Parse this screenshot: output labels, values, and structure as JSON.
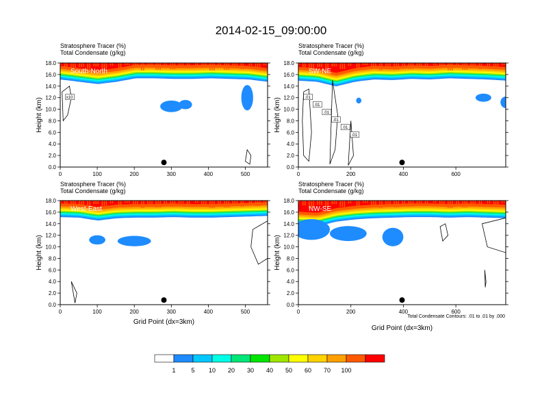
{
  "title": "2014-02-15_09:00:00",
  "colorbar": {
    "colors": [
      "#ffffff",
      "#1e8cff",
      "#00c8ff",
      "#00ffe6",
      "#00e678",
      "#00e600",
      "#a0e600",
      "#ffff00",
      "#ffd200",
      "#ffa000",
      "#ff5a00",
      "#ff0000"
    ],
    "labels": [
      "1",
      "5",
      "10",
      "20",
      "30",
      "40",
      "50",
      "60",
      "70",
      "100"
    ]
  },
  "footnote": "Total Condensate Contours: .01 to .01 by .000",
  "chart_data": [
    {
      "type": "heatmap",
      "panel": "top-left",
      "label": "South-North",
      "header": [
        "Stratosphere Tracer   (%)",
        "Total Condensate   (g/kg)"
      ],
      "ylabel": "Height (km)",
      "xlabel": "",
      "xlim": [
        0,
        560
      ],
      "ylim": [
        0,
        18
      ],
      "xticks": [
        "0",
        "100",
        "200",
        "300",
        "400",
        "500"
      ],
      "xtick_values": [
        0,
        100,
        200,
        300,
        400,
        500
      ],
      "yticks": [
        "0.0",
        "2.0",
        "4.0",
        "6.0",
        "8.0",
        "10.0",
        "12.0",
        "14.0",
        "16.0",
        "18.0"
      ],
      "marker": {
        "x": 280,
        "y": 0.8
      },
      "tracer_base_km": [
        15.4,
        15.0,
        14.6,
        15.0,
        15.6,
        15.6,
        15.5,
        15.5,
        15.6,
        15.5,
        15.4,
        15.0
      ],
      "contour_labels": [
        "x10"
      ]
    },
    {
      "type": "heatmap",
      "panel": "top-right",
      "label": "SW-NE",
      "header": [
        "Stratosphere Tracer   (%)",
        "Total Condensate   (g/kg)"
      ],
      "ylabel": "Height (km)",
      "xlabel": "",
      "xlim": [
        0,
        790
      ],
      "ylim": [
        0,
        18
      ],
      "xticks": [
        "0",
        "200",
        "400",
        "600"
      ],
      "xtick_values": [
        0,
        200,
        400,
        600
      ],
      "yticks": [
        "0.0",
        "2.0",
        "4.0",
        "6.0",
        "8.0",
        "10.0",
        "12.0",
        "14.0",
        "16.0",
        "18.0"
      ],
      "marker": {
        "x": 395,
        "y": 0.8
      },
      "tracer_base_km": [
        15.2,
        15.0,
        14.2,
        15.0,
        15.4,
        15.3,
        15.5,
        15.4,
        15.6,
        15.5,
        15.4,
        15.2
      ],
      "contour_labels": [
        ".01",
        ".01",
        ".01",
        ".01",
        ".01",
        ".01"
      ]
    },
    {
      "type": "heatmap",
      "panel": "bottom-left",
      "label": "West-East",
      "header": [
        "Stratosphere Tracer   (%)",
        "Total Condensate   (g/kg)"
      ],
      "ylabel": "Height (km)",
      "xlabel": "Grid Point (dx=3km)",
      "xlim": [
        0,
        560
      ],
      "ylim": [
        0,
        18
      ],
      "xticks": [
        "0",
        "100",
        "200",
        "300",
        "400",
        "500"
      ],
      "xtick_values": [
        0,
        100,
        200,
        300,
        400,
        500
      ],
      "yticks": [
        "0.0",
        "2.0",
        "4.0",
        "6.0",
        "8.0",
        "10.0",
        "12.0",
        "14.0",
        "16.0",
        "18.0"
      ],
      "marker": {
        "x": 280,
        "y": 0.8
      },
      "tracer_base_km": [
        15.4,
        15.3,
        14.8,
        15.2,
        15.3,
        15.3,
        15.4,
        15.3,
        15.3,
        15.4,
        15.5,
        15.6
      ],
      "contour_labels": []
    },
    {
      "type": "heatmap",
      "panel": "bottom-right",
      "label": "NW-SE",
      "header": [
        "Stratosphere Tracer   (%)",
        "Total Condensate   (g/kg)"
      ],
      "ylabel": "Height (km)",
      "xlabel": "Grid Point (dx=3km)",
      "xlim": [
        0,
        790
      ],
      "ylim": [
        0,
        18
      ],
      "xticks": [
        "0",
        "200",
        "400",
        "600"
      ],
      "xtick_values": [
        0,
        200,
        400,
        600
      ],
      "yticks": [
        "0.0",
        "2.0",
        "4.0",
        "6.0",
        "8.0",
        "10.0",
        "12.0",
        "14.0",
        "16.0",
        "18.0"
      ],
      "marker": {
        "x": 395,
        "y": 0.8
      },
      "tracer_base_km": [
        14.0,
        13.8,
        14.6,
        15.0,
        15.2,
        15.3,
        15.4,
        15.4,
        15.3,
        15.4,
        15.3,
        15.2
      ],
      "contour_labels": []
    }
  ]
}
